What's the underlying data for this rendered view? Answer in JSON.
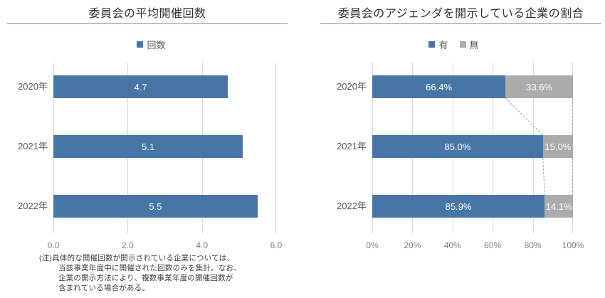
{
  "figure": {
    "background": "#ffffff",
    "colors": {
      "bar_blue": "#4776A6",
      "bar_gray": "#ABABAB",
      "gridline": "#D9D9D9",
      "title_text": "#333333",
      "axis_text": "#808080",
      "category_text": "#595959",
      "value_text": "#FFFFFF",
      "connector_dash": "#A6A6A6",
      "title_rule": "#8C8C8C"
    }
  },
  "chart_data": [
    {
      "type": "bar",
      "title": "委員会の平均開催回数",
      "legend": [
        {
          "label": "回数",
          "color": "#4776A6"
        }
      ],
      "categories": [
        "2020年",
        "2021年",
        "2022年"
      ],
      "values": [
        4.7,
        5.1,
        5.5
      ],
      "value_labels": [
        "4.7",
        "5.1",
        "5.5"
      ],
      "xlim": [
        0,
        6
      ],
      "x_tick_labels": [
        "0.0",
        "2.0",
        "4.0",
        "6.0"
      ],
      "grid": "vertical",
      "legend_position": "top",
      "note_lines": [
        "(注)具体的な開催回数が開示されている企業については、",
        "当該事業年度中に開催された回数のみを集計。なお、",
        "企業の開示方法により、複数事業年度の開催回数が",
        "含まれている場合がある。"
      ]
    },
    {
      "type": "stacked-bar",
      "title": "委員会のアジェンダを開示している企業の割合",
      "legend": [
        {
          "label": "有",
          "color": "#4776A6"
        },
        {
          "label": "無",
          "color": "#ABABAB"
        }
      ],
      "categories": [
        "2020年",
        "2021年",
        "2022年"
      ],
      "series": [
        {
          "name": "有",
          "color": "#4776A6",
          "values": [
            66.4,
            85.0,
            85.9
          ],
          "labels": [
            "66.4%",
            "85.0%",
            "85.9%"
          ]
        },
        {
          "name": "無",
          "color": "#ABABAB",
          "values": [
            33.6,
            15.0,
            14.1
          ],
          "labels": [
            "33.6%",
            "15.0%",
            "14.1%"
          ]
        }
      ],
      "xlim": [
        0,
        100
      ],
      "x_tick_labels": [
        "0%",
        "20%",
        "40%",
        "60%",
        "80%",
        "100%"
      ],
      "grid": "vertical",
      "legend_position": "top",
      "connectors": "dashed"
    }
  ]
}
